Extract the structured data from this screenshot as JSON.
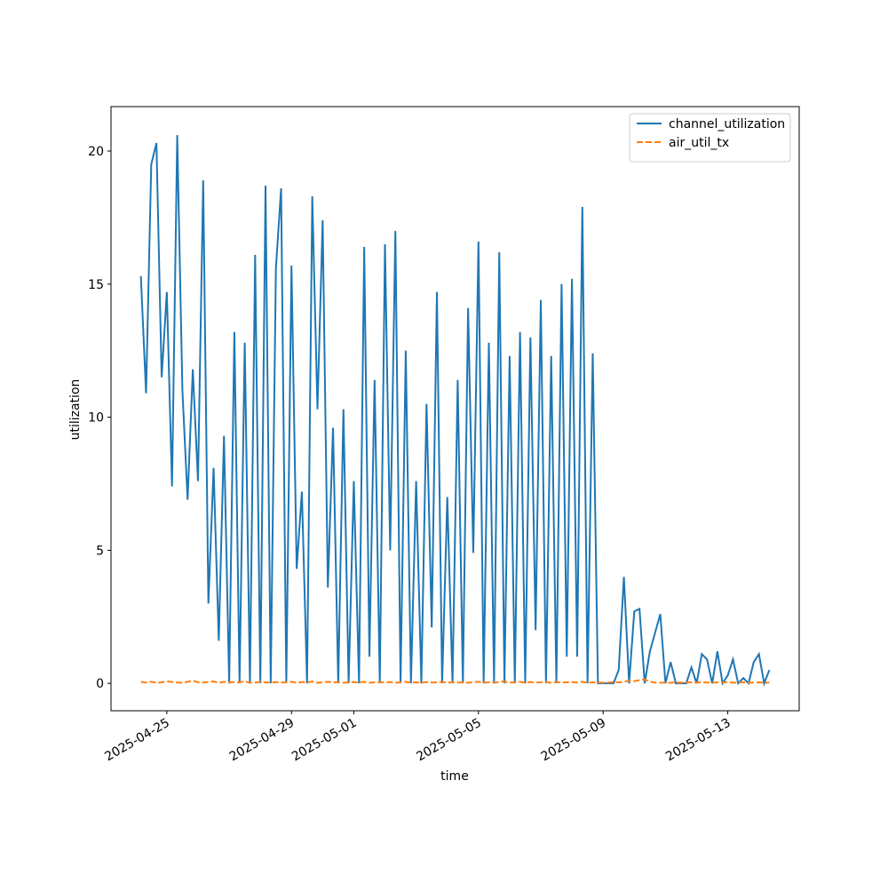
{
  "chart_data": {
    "type": "line",
    "xlabel": "time",
    "ylabel": "utilization",
    "x": [
      "2025-04-24T04:00",
      "2025-04-24T08:00",
      "2025-04-24T12:00",
      "2025-04-24T16:00",
      "2025-04-24T20:00",
      "2025-04-25T00:00",
      "2025-04-25T04:00",
      "2025-04-25T08:00",
      "2025-04-25T12:00",
      "2025-04-25T16:00",
      "2025-04-25T20:00",
      "2025-04-26T00:00",
      "2025-04-26T04:00",
      "2025-04-26T08:00",
      "2025-04-26T12:00",
      "2025-04-26T16:00",
      "2025-04-26T20:00",
      "2025-04-27T00:00",
      "2025-04-27T04:00",
      "2025-04-27T08:00",
      "2025-04-27T12:00",
      "2025-04-27T16:00",
      "2025-04-27T20:00",
      "2025-04-28T00:00",
      "2025-04-28T04:00",
      "2025-04-28T08:00",
      "2025-04-28T12:00",
      "2025-04-28T16:00",
      "2025-04-28T20:00",
      "2025-04-29T00:00",
      "2025-04-29T04:00",
      "2025-04-29T08:00",
      "2025-04-29T12:00",
      "2025-04-29T16:00",
      "2025-04-29T20:00",
      "2025-04-30T00:00",
      "2025-04-30T04:00",
      "2025-04-30T08:00",
      "2025-04-30T12:00",
      "2025-04-30T16:00",
      "2025-04-30T20:00",
      "2025-05-01T00:00",
      "2025-05-01T04:00",
      "2025-05-01T08:00",
      "2025-05-01T12:00",
      "2025-05-01T16:00",
      "2025-05-01T20:00",
      "2025-05-02T00:00",
      "2025-05-02T04:00",
      "2025-05-02T08:00",
      "2025-05-02T12:00",
      "2025-05-02T16:00",
      "2025-05-02T20:00",
      "2025-05-03T00:00",
      "2025-05-03T04:00",
      "2025-05-03T08:00",
      "2025-05-03T12:00",
      "2025-05-03T16:00",
      "2025-05-03T20:00",
      "2025-05-04T00:00",
      "2025-05-04T04:00",
      "2025-05-04T08:00",
      "2025-05-04T12:00",
      "2025-05-04T16:00",
      "2025-05-04T20:00",
      "2025-05-05T00:00",
      "2025-05-05T04:00",
      "2025-05-05T08:00",
      "2025-05-05T12:00",
      "2025-05-05T16:00",
      "2025-05-05T20:00",
      "2025-05-06T00:00",
      "2025-05-06T04:00",
      "2025-05-06T08:00",
      "2025-05-06T12:00",
      "2025-05-06T16:00",
      "2025-05-06T20:00",
      "2025-05-07T00:00",
      "2025-05-07T04:00",
      "2025-05-07T08:00",
      "2025-05-07T12:00",
      "2025-05-07T16:00",
      "2025-05-07T20:00",
      "2025-05-08T00:00",
      "2025-05-08T04:00",
      "2025-05-08T08:00",
      "2025-05-08T12:00",
      "2025-05-08T16:00",
      "2025-05-08T20:00",
      "2025-05-09T00:00",
      "2025-05-09T04:00",
      "2025-05-09T08:00",
      "2025-05-09T12:00",
      "2025-05-09T16:00",
      "2025-05-09T20:00",
      "2025-05-10T00:00",
      "2025-05-10T04:00",
      "2025-05-10T08:00",
      "2025-05-10T12:00",
      "2025-05-10T16:00",
      "2025-05-10T20:00",
      "2025-05-11T00:00",
      "2025-05-11T04:00",
      "2025-05-11T08:00",
      "2025-05-11T12:00",
      "2025-05-11T16:00",
      "2025-05-11T20:00",
      "2025-05-12T00:00",
      "2025-05-12T04:00",
      "2025-05-12T08:00",
      "2025-05-12T12:00",
      "2025-05-12T16:00",
      "2025-05-12T20:00",
      "2025-05-13T00:00",
      "2025-05-13T04:00",
      "2025-05-13T08:00",
      "2025-05-13T12:00",
      "2025-05-13T16:00",
      "2025-05-13T20:00",
      "2025-05-14T00:00",
      "2025-05-14T04:00",
      "2025-05-14T08:00"
    ],
    "series": [
      {
        "name": "channel_utilization",
        "color": "#1f77b4",
        "dash": "solid",
        "values": [
          15.3,
          10.9,
          19.5,
          20.3,
          11.5,
          14.7,
          7.4,
          20.6,
          11.0,
          6.9,
          11.8,
          7.6,
          18.9,
          3.0,
          8.1,
          1.6,
          9.3,
          0,
          13.2,
          0,
          12.8,
          0,
          16.1,
          0,
          18.7,
          0,
          15.6,
          18.6,
          0,
          15.7,
          4.3,
          7.2,
          0,
          18.3,
          10.3,
          17.4,
          3.6,
          9.6,
          0,
          10.3,
          0,
          7.6,
          0,
          16.4,
          1.0,
          11.4,
          0,
          16.5,
          5.0,
          17.0,
          0,
          12.5,
          0,
          7.6,
          0,
          10.5,
          2.1,
          14.7,
          0,
          7.0,
          0,
          11.4,
          0,
          14.1,
          4.9,
          16.6,
          0,
          12.8,
          0,
          16.2,
          0,
          12.3,
          0,
          13.2,
          0,
          13.0,
          2.0,
          14.4,
          0,
          12.3,
          0,
          15.0,
          1.0,
          15.2,
          1.0,
          17.9,
          0,
          12.4,
          0,
          0,
          0,
          0,
          0.5,
          4.0,
          0,
          2.7,
          2.8,
          0,
          1.2,
          1.9,
          2.6,
          0,
          0.8,
          0,
          0,
          0,
          0.6,
          0,
          1.1,
          0.9,
          0,
          1.2,
          0,
          0.3,
          0.9,
          0,
          0.2,
          0,
          0.8,
          1.1,
          0,
          0.5
        ]
      },
      {
        "name": "air_util_tx",
        "color": "#ff7f0e",
        "dash": "dashed",
        "values": [
          0.05,
          0.03,
          0.06,
          0.02,
          0.04,
          0.08,
          0.05,
          0.03,
          0.02,
          0.06,
          0.1,
          0.04,
          0.03,
          0.05,
          0.07,
          0.02,
          0.06,
          0.03,
          0.05,
          0.04,
          0.08,
          0.02,
          0.03,
          0.06,
          0.04,
          0.02,
          0.05,
          0.03,
          0.04,
          0.06,
          0.02,
          0.05,
          0.03,
          0.07,
          0.02,
          0.04,
          0.06,
          0.03,
          0.05,
          0.02,
          0.04,
          0.05,
          0.03,
          0.06,
          0.02,
          0.04,
          0.05,
          0.03,
          0.05,
          0.02,
          0.04,
          0.06,
          0.03,
          0.04,
          0.02,
          0.05,
          0.03,
          0.04,
          0.06,
          0.02,
          0.05,
          0.03,
          0.04,
          0.02,
          0.05,
          0.06,
          0.03,
          0.04,
          0.02,
          0.05,
          0.07,
          0.03,
          0.04,
          0.06,
          0.02,
          0.05,
          0.03,
          0.04,
          0.06,
          0.02,
          0.05,
          0.03,
          0.04,
          0.05,
          0.03,
          0.06,
          0.02,
          0.04,
          0.03,
          0.02,
          0.03,
          0.05,
          0.04,
          0.06,
          0.1,
          0.08,
          0.12,
          0.15,
          0.06,
          0.03,
          0.02,
          0.03,
          0.02,
          0.04,
          0.02,
          0.03,
          0.04,
          0.02,
          0.05,
          0.03,
          0.02,
          0.04,
          0.03,
          0.05,
          0.02,
          0.03,
          0.04,
          0.02,
          0.03,
          0.04,
          0.02,
          0.03
        ]
      }
    ],
    "xlim": [
      "2025-04-23T05:00",
      "2025-05-15T07:00"
    ],
    "xticks": [
      "2025-04-25",
      "2025-04-29",
      "2025-05-01",
      "2025-05-05",
      "2025-05-09",
      "2025-05-13"
    ],
    "ylim": [
      -1.03,
      21.67
    ],
    "yticks": [
      0,
      5,
      10,
      15,
      20
    ],
    "grid": false,
    "legend": "upper right"
  }
}
